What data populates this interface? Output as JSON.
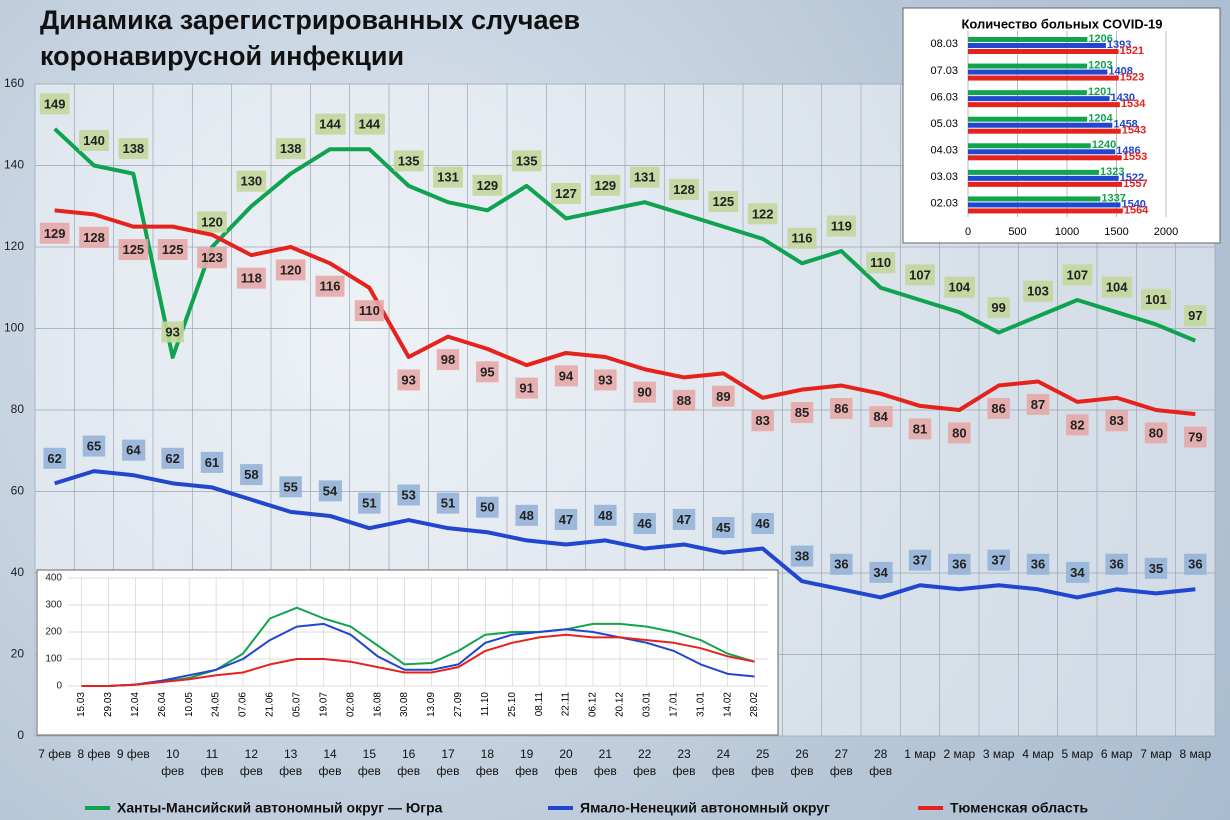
{
  "chart_data": [
    {
      "type": "line",
      "title": "Динамика зарегистрированных случаев\nкоронавирусной инфекции",
      "categories": [
        "7 фев",
        "8 фев",
        "9 фев",
        "10\nфев",
        "11\nфев",
        "12\nфев",
        "13\nфев",
        "14\nфев",
        "15\nфев",
        "16\nфев",
        "17\nфев",
        "18\nфев",
        "19\nфев",
        "20\nфев",
        "21\nфев",
        "22\nфев",
        "23\nфев",
        "24\nфев",
        "25\nфев",
        "26\nфев",
        "27\nфев",
        "28\nфев",
        "1 мар",
        "2 мар",
        "3 мар",
        "4 мар",
        "5 мар",
        "6 мар",
        "7 мар",
        "8 мар"
      ],
      "series": [
        {
          "name": "Ханты-Мансийский автономный округ — Югра",
          "color": "#0fa350",
          "label_color": "#c3d69b",
          "values": [
            149,
            140,
            138,
            93,
            120,
            130,
            138,
            144,
            144,
            135,
            131,
            129,
            135,
            127,
            129,
            131,
            128,
            125,
            122,
            116,
            119,
            110,
            107,
            104,
            99,
            103,
            107,
            104,
            101,
            97
          ]
        },
        {
          "name": "Ямало-Ненецкий автономный округ",
          "color": "#2146d0",
          "label_color": "#95b3d7",
          "values": [
            62,
            65,
            64,
            62,
            61,
            58,
            55,
            54,
            51,
            53,
            51,
            50,
            48,
            47,
            48,
            46,
            47,
            45,
            46,
            38,
            36,
            34,
            37,
            36,
            37,
            36,
            34,
            36,
            35,
            36
          ]
        },
        {
          "name": "Тюменская область",
          "color": "#e5231c",
          "label_color": "#e6a9a8",
          "values": [
            129,
            128,
            125,
            125,
            123,
            118,
            120,
            116,
            110,
            93,
            98,
            95,
            91,
            94,
            93,
            90,
            88,
            89,
            83,
            85,
            86,
            84,
            81,
            80,
            86,
            87,
            82,
            83,
            80,
            79
          ]
        }
      ],
      "ylim": [
        0,
        160
      ],
      "yticks": [
        0,
        20,
        40,
        60,
        80,
        100,
        120,
        140,
        160
      ],
      "grid": true,
      "legend": "bottom"
    },
    {
      "type": "barh",
      "title": "Количество больных COVID-19",
      "categories": [
        "08.03",
        "07.03",
        "06.03",
        "05.03",
        "04.03",
        "03.03",
        "02.03"
      ],
      "series": [
        {
          "color": "#12a34f",
          "values": [
            1206,
            1203,
            1201,
            1204,
            1240,
            1323,
            1337
          ]
        },
        {
          "color": "#2146d0",
          "values": [
            1393,
            1408,
            1430,
            1458,
            1486,
            1522,
            1540
          ]
        },
        {
          "color": "#e5231c",
          "values": [
            1521,
            1523,
            1534,
            1543,
            1553,
            1557,
            1564
          ]
        }
      ],
      "xlim": [
        0,
        2000
      ],
      "xticks": [
        0,
        500,
        1000,
        1500,
        2000
      ],
      "grid": true
    },
    {
      "type": "line",
      "categories": [
        "15.03",
        "29.03",
        "12.04",
        "26.04",
        "10.05",
        "24.05",
        "07.06",
        "21.06",
        "05.07",
        "19.07",
        "02.08",
        "16.08",
        "30.08",
        "13.09",
        "27.09",
        "11.10",
        "25.10",
        "08.11",
        "22.11",
        "06.12",
        "20.12",
        "03.01",
        "17.01",
        "31.01",
        "14.02",
        "28.02"
      ],
      "series": [
        {
          "color": "#12a34f",
          "values": [
            0,
            0,
            5,
            15,
            30,
            60,
            120,
            250,
            290,
            250,
            220,
            150,
            80,
            85,
            130,
            190,
            200,
            200,
            210,
            230,
            230,
            220,
            200,
            170,
            120,
            90
          ]
        },
        {
          "color": "#2146d0",
          "values": [
            0,
            0,
            5,
            20,
            40,
            60,
            100,
            170,
            220,
            230,
            190,
            110,
            60,
            60,
            80,
            160,
            190,
            200,
            210,
            200,
            180,
            160,
            130,
            80,
            45,
            35
          ]
        },
        {
          "color": "#e5231c",
          "values": [
            0,
            0,
            5,
            15,
            25,
            40,
            50,
            80,
            100,
            100,
            90,
            70,
            50,
            50,
            70,
            130,
            160,
            180,
            190,
            180,
            180,
            170,
            160,
            140,
            110,
            90
          ]
        }
      ],
      "ylim": [
        0,
        400
      ],
      "yticks": [
        0,
        100,
        200,
        300,
        400
      ],
      "grid": true
    }
  ]
}
